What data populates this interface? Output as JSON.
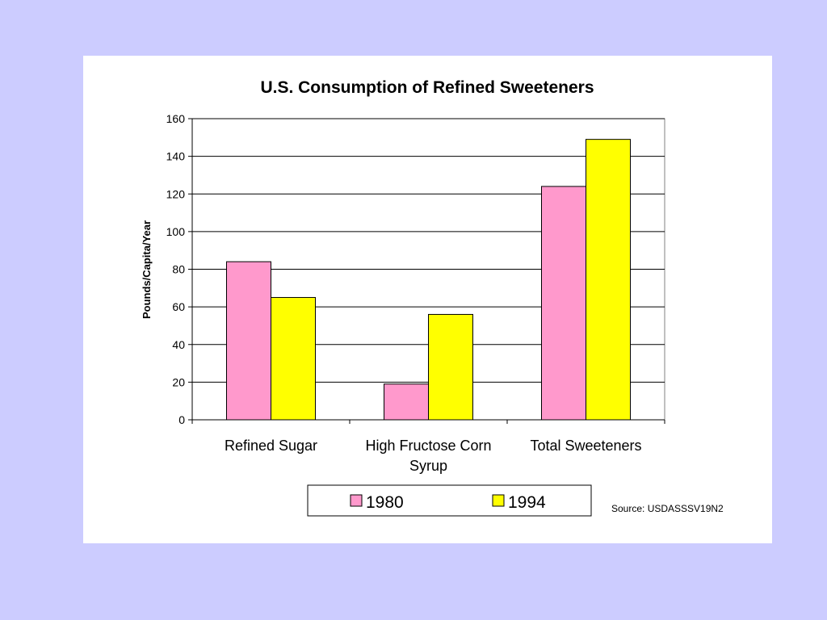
{
  "chart_data": {
    "type": "bar",
    "title": "U.S. Consumption of Refined Sweeteners",
    "xlabel": "",
    "ylabel": "Pounds/Capita/Year",
    "ylim": [
      0,
      160
    ],
    "yticks": [
      "0",
      "20",
      "40",
      "60",
      "80",
      "100",
      "120",
      "140",
      "160"
    ],
    "categories": [
      [
        "Refined Sugar"
      ],
      [
        "High Fructose Corn",
        "Syrup"
      ],
      [
        "Total Sweeteners"
      ]
    ],
    "series": [
      {
        "name": "1980",
        "color": "#ff99cc",
        "values": [
          84,
          19,
          124
        ]
      },
      {
        "name": "1994",
        "color": "#ffff00",
        "values": [
          65,
          56,
          149
        ]
      }
    ],
    "grid": true,
    "legend": "bottom"
  },
  "source": "Source: USDASSSV19N2"
}
